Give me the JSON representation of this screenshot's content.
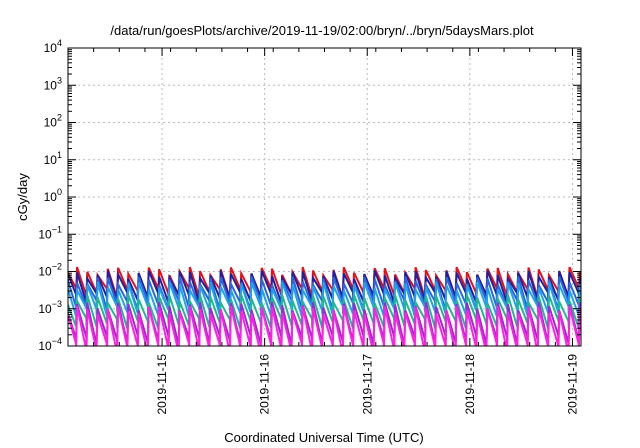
{
  "chart_data": {
    "type": "line",
    "title": "/data/run/goesPlots/archive/2019-11-19/02:00/bryn/../bryn/5daysMars.plot",
    "xlabel": "Coordinated Universal Time (UTC)",
    "ylabel": "cGy/day",
    "y_scale": "log",
    "ylim": [
      0.0001,
      10000
    ],
    "xlim": [
      "2019-11-14 02:00",
      "2019-11-19 02:00"
    ],
    "x_ticks": [
      "2019-11-15",
      "2019-11-16",
      "2019-11-17",
      "2019-11-18",
      "2019-11-19"
    ],
    "y_ticks": [
      {
        "base": "10",
        "exp": "4"
      },
      {
        "base": "10",
        "exp": "3"
      },
      {
        "base": "10",
        "exp": "2"
      },
      {
        "base": "10",
        "exp": "1"
      },
      {
        "base": "10",
        "exp": "0"
      },
      {
        "base": "10",
        "exp": "−1"
      },
      {
        "base": "10",
        "exp": "−2"
      },
      {
        "base": "10",
        "exp": "−3"
      },
      {
        "base": "10",
        "exp": "−4"
      }
    ],
    "grid": true,
    "legend": "none",
    "sawtooth_period_hours": 2.4,
    "series": [
      {
        "color": "#e8101c",
        "peak": 0.0105,
        "trough": 0.0028
      },
      {
        "color": "#2020a0",
        "peak": 0.0085,
        "trough": 0.0021
      },
      {
        "color": "#2a66e0",
        "peak": 0.0058,
        "trough": 0.0013
      },
      {
        "color": "#1ea3e8",
        "peak": 0.0042,
        "trough": 0.0009
      },
      {
        "color": "#20b890",
        "peak": 0.0019,
        "trough": 0.00042
      },
      {
        "color": "#9a2ad8",
        "peak": 0.0012,
        "trough": 0.00015
      },
      {
        "color": "#ff20e0",
        "peak": 0.00095,
        "trough": 9e-05
      }
    ]
  }
}
